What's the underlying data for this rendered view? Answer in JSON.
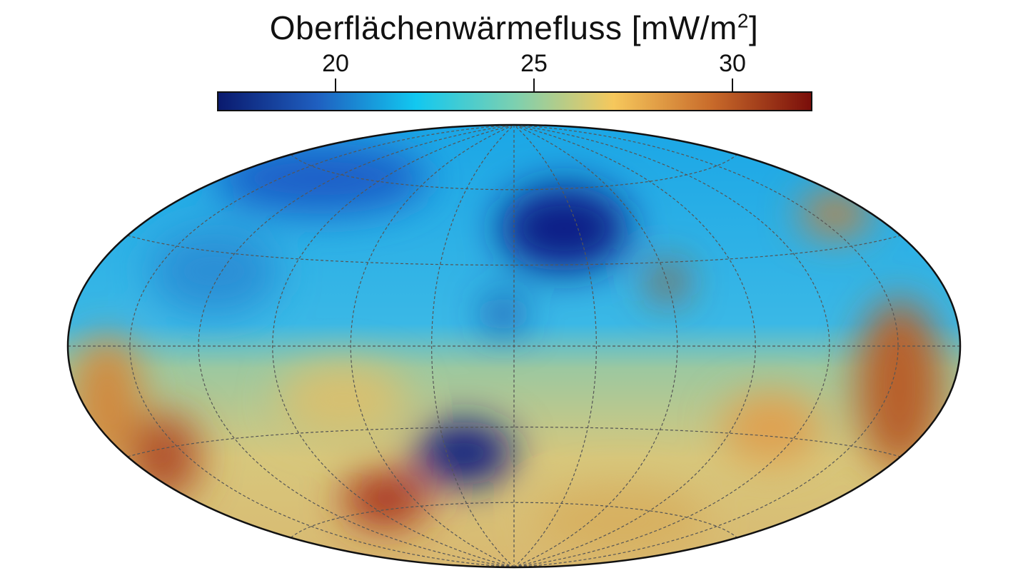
{
  "colorbar": {
    "title": "Oberflächenwärmefluss [mW/m",
    "title_sup": "2",
    "title_end": "]",
    "range": [
      17,
      32
    ],
    "ticks": [
      {
        "value": 20,
        "label": "20"
      },
      {
        "value": 25,
        "label": "25"
      },
      {
        "value": 30,
        "label": "30"
      }
    ],
    "colormap": [
      "#0a1a6e",
      "#1f5fc0",
      "#12c8f0",
      "#7cd0b0",
      "#f6c85c",
      "#c86a2a",
      "#7a0e0a"
    ]
  },
  "map": {
    "projection": "Hammer",
    "graticule_spacing_deg": 30,
    "graticule_color": "#555555"
  }
}
